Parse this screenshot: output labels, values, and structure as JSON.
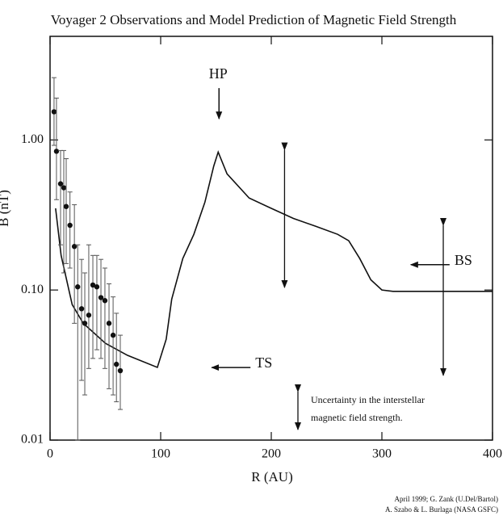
{
  "chart_data": {
    "type": "scatter",
    "title": "Voyager 2 Observations and Model Prediction of Magnetic Field Strength",
    "x_label": "R (AU)",
    "y_label": "B (nT)",
    "log_y": true,
    "xlim": [
      0,
      400
    ],
    "ylim": [
      0.01,
      4.9
    ],
    "xticks": [
      0,
      100,
      200,
      300,
      400
    ],
    "yticks": [
      {
        "value": 0.01,
        "label": "0.01"
      },
      {
        "value": 0.1,
        "label": "0.10"
      },
      {
        "value": 1,
        "label": "1.00"
      }
    ],
    "color": "#111111",
    "observations": {
      "x": [
        3.6,
        5.8,
        9.5,
        12.4,
        14.6,
        18,
        22,
        25,
        28.5,
        31.4,
        35,
        38.7,
        42.3,
        46,
        49.6,
        53.3,
        57,
        60,
        63.5
      ],
      "values": [
        1.54,
        0.84,
        0.51,
        0.48,
        0.36,
        0.27,
        0.195,
        0.105,
        0.075,
        0.06,
        0.068,
        0.108,
        0.105,
        0.089,
        0.085,
        0.06,
        0.05,
        0.032,
        0.029
      ],
      "error_low": [
        0.92,
        0.4,
        0.2,
        0.13,
        0.15,
        0.14,
        0.06,
        0.01,
        0.025,
        0.02,
        0.03,
        0.035,
        0.04,
        0.035,
        0.03,
        0.022,
        0.02,
        0.018,
        0.016
      ],
      "error_high": [
        2.6,
        1.9,
        0.85,
        0.85,
        0.75,
        0.45,
        0.37,
        0.2,
        0.16,
        0.13,
        0.2,
        0.17,
        0.17,
        0.16,
        0.14,
        0.11,
        0.09,
        0.07,
        0.05
      ]
    },
    "model": {
      "x": [
        5,
        10,
        20,
        30,
        50,
        70,
        97,
        105,
        110,
        120,
        130,
        140,
        148,
        152,
        160,
        180,
        200,
        220,
        240,
        260,
        270,
        280,
        290,
        300,
        310,
        350,
        400
      ],
      "values": [
        0.35,
        0.17,
        0.08,
        0.06,
        0.0442,
        0.0367,
        0.0305,
        0.047,
        0.087,
        0.162,
        0.235,
        0.385,
        0.67,
        0.83,
        0.594,
        0.41,
        0.35,
        0.3,
        0.266,
        0.235,
        0.213,
        0.162,
        0.117,
        0.1,
        0.098,
        0.098,
        0.098
      ]
    },
    "uncertainty": [
      {
        "x": 212,
        "low": 0.104,
        "high": 0.86
      },
      {
        "x": 355.5,
        "low": 0.027,
        "high": 0.27
      }
    ],
    "annotations": [
      {
        "text": "HP",
        "x": 152,
        "y": 2.7
      },
      {
        "text": "TS",
        "x": 152,
        "y": 0.032
      },
      {
        "text": "BS",
        "x": 332,
        "y": 0.155
      }
    ],
    "legend_text": [
      "Uncertainty in the interstellar",
      "magnetic field strength."
    ],
    "credits": [
      "April 1999; G. Zank (U.Del/Bartol)",
      "A. Szabo & L. Burlaga (NASA GSFC)"
    ]
  }
}
